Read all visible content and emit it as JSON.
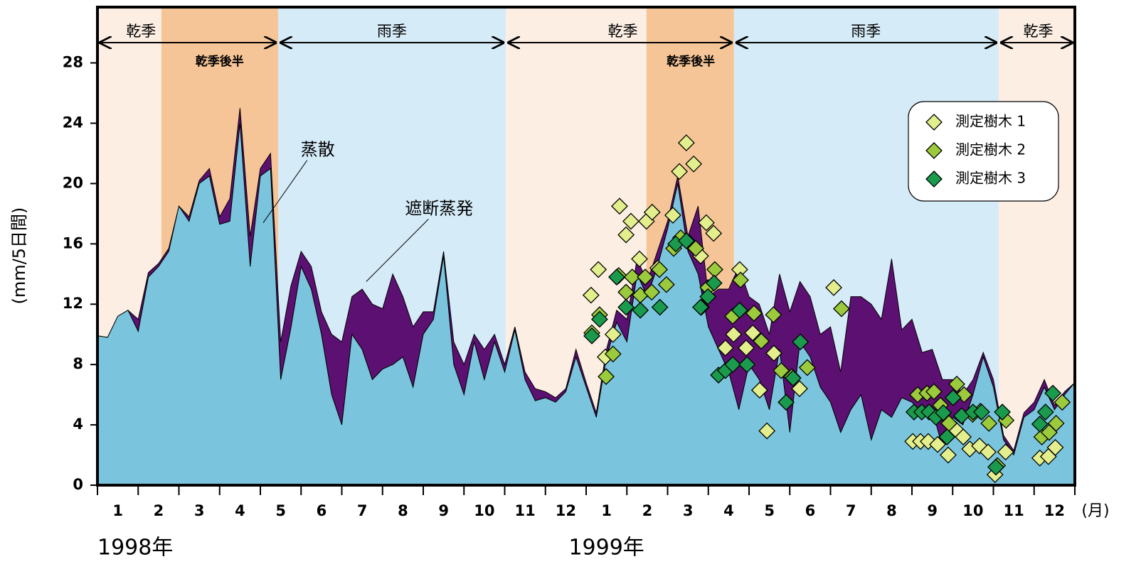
{
  "chart_data": {
    "type": "area",
    "y_label": "(mm/5日間)",
    "x_unit_label": "(月)",
    "year_labels": [
      {
        "label": "1998年",
        "at": 0
      },
      {
        "label": "1999年",
        "at": 12.5
      }
    ],
    "month_labels": [
      "1",
      "2",
      "3",
      "4",
      "5",
      "6",
      "7",
      "8",
      "9",
      "10",
      "11",
      "12",
      "1",
      "2",
      "3",
      "4",
      "5",
      "6",
      "7",
      "8",
      "9",
      "10",
      "11",
      "12"
    ],
    "xlim": [
      0,
      24
    ],
    "xticks": [
      0,
      1,
      2,
      3,
      4,
      5,
      6,
      7,
      8,
      9,
      10,
      11,
      12,
      13,
      14,
      15,
      16,
      17,
      18,
      19,
      20,
      21,
      22,
      23,
      24
    ],
    "ylim": [
      0,
      31.7
    ],
    "yticks": [
      0,
      4,
      8,
      12,
      16,
      20,
      24,
      28
    ],
    "bands": [
      {
        "from": 0,
        "to": 1.57,
        "color": "#fdeee3"
      },
      {
        "from": 1.57,
        "to": 4.44,
        "color": "#f6c597"
      },
      {
        "from": 4.44,
        "to": 10.03,
        "color": "#d5ebf8"
      },
      {
        "from": 10.03,
        "to": 13.48,
        "color": "#fdeee3"
      },
      {
        "from": 13.48,
        "to": 15.63,
        "color": "#f6c597"
      },
      {
        "from": 15.63,
        "to": 22.13,
        "color": "#d5ebf8"
      },
      {
        "from": 22.13,
        "to": 24,
        "color": "#fdeee3"
      }
    ],
    "periods": [
      {
        "label": "乾季",
        "from": 0,
        "to": 4.44,
        "label_at": 1.07
      },
      {
        "label": "雨季",
        "from": 4.44,
        "to": 10.03,
        "label_at": 7.23
      },
      {
        "label": "乾季",
        "from": 10.03,
        "to": 15.63,
        "label_at": 12.9
      },
      {
        "label": "雨季",
        "from": 15.63,
        "to": 22.13,
        "label_at": 18.87
      },
      {
        "label": "乾季",
        "from": 22.13,
        "to": 24,
        "label_at": 23.1
      }
    ],
    "sub_periods": [
      {
        "label": "乾季後半",
        "at": 3.0
      },
      {
        "label": "乾季後半",
        "at": 14.57
      }
    ],
    "x": [
      0,
      0.25,
      0.5,
      0.75,
      1,
      1.25,
      1.5,
      1.75,
      2,
      2.25,
      2.5,
      2.75,
      3,
      3.25,
      3.5,
      3.75,
      4,
      4.25,
      4.5,
      4.75,
      5,
      5.25,
      5.5,
      5.75,
      6,
      6.25,
      6.5,
      6.75,
      7,
      7.25,
      7.5,
      7.75,
      8,
      8.25,
      8.5,
      8.75,
      9,
      9.25,
      9.5,
      9.75,
      10,
      10.25,
      10.5,
      10.75,
      11,
      11.25,
      11.5,
      11.75,
      12,
      12.25,
      12.5,
      12.75,
      13,
      13.25,
      13.5,
      13.75,
      14,
      14.25,
      14.5,
      14.75,
      15,
      15.25,
      15.5,
      15.75,
      16,
      16.25,
      16.5,
      16.75,
      17,
      17.25,
      17.5,
      17.75,
      18,
      18.25,
      18.5,
      18.75,
      19,
      19.25,
      19.5,
      19.75,
      20,
      20.25,
      20.5,
      20.75,
      21,
      21.25,
      21.5,
      21.75,
      22,
      22.25,
      22.5,
      22.75,
      23,
      23.25,
      23.5,
      23.75,
      24
    ],
    "series": [
      {
        "name": "蒸散",
        "color": "#7ac5dd",
        "values": [
          9.9,
          9.8,
          11.2,
          11.6,
          10.2,
          13.8,
          14.5,
          15.5,
          18.5,
          17.5,
          20.0,
          20.5,
          17.3,
          17.5,
          24.0,
          14.5,
          20.5,
          21.0,
          7.0,
          10.4,
          14.5,
          13.0,
          10.0,
          6.0,
          4.0,
          10.0,
          9.0,
          7.0,
          7.7,
          8.0,
          8.5,
          6.5,
          10.0,
          11.0,
          15.2,
          8.0,
          6.0,
          9.5,
          7.0,
          9.5,
          7.5,
          10.3,
          7.0,
          5.6,
          5.8,
          5.5,
          6.2,
          8.5,
          6.5,
          4.5,
          8.5,
          10.8,
          9.5,
          14.0,
          12.5,
          14.5,
          17.0,
          20.0,
          15.5,
          14.0,
          10.5,
          9.0,
          7.5,
          5.0,
          8.0,
          7.0,
          5.0,
          9.0,
          3.5,
          9.5,
          8.5,
          6.5,
          5.5,
          3.5,
          5.0,
          6.0,
          3.0,
          5.0,
          4.5,
          5.8,
          5.5,
          4.8,
          5.0,
          2.5,
          4.5,
          4.0,
          6.0,
          8.5,
          6.5,
          3.0,
          2.0,
          4.5,
          5.0,
          6.5,
          5.0,
          6.0,
          6.8
        ]
      },
      {
        "name": "遮断蒸発",
        "color": "#5c1072",
        "values": [
          0,
          0,
          0,
          0,
          0.8,
          0.3,
          0.2,
          0.2,
          0,
          0.3,
          0.2,
          0.5,
          0.5,
          1.5,
          1.0,
          2.0,
          0.5,
          1.0,
          2.5,
          2.8,
          1.0,
          1.5,
          1.5,
          4.0,
          5.5,
          2.5,
          4.0,
          5.0,
          4.0,
          6.0,
          4.0,
          4.0,
          1.5,
          0.5,
          0.3,
          1.5,
          2.0,
          0.5,
          2.0,
          0.5,
          0.5,
          0.2,
          0.5,
          0.8,
          0.4,
          0.3,
          0.2,
          0.5,
          0.3,
          0.3,
          0.5,
          0.8,
          1.5,
          1.0,
          1.0,
          1.0,
          0.5,
          0.5,
          1.0,
          4.5,
          2.0,
          4.0,
          5.5,
          9.5,
          4.5,
          5.0,
          5.0,
          5.0,
          8.0,
          4.0,
          4.0,
          3.5,
          5.0,
          4.0,
          7.5,
          6.5,
          9.0,
          6.0,
          10.5,
          4.5,
          5.5,
          4.0,
          4.0,
          4.5,
          2.5,
          2.0,
          1.0,
          0.3,
          0.5,
          0.3,
          0.3,
          0.3,
          0.5,
          0.5,
          0.3,
          0.2,
          0
        ]
      }
    ],
    "annotations": [
      {
        "text": "蒸散",
        "x": 5.41,
        "y": 22.2,
        "to_x": 4.07,
        "to_y": 17.4
      },
      {
        "text": "遮断蒸発",
        "x": 8.39,
        "y": 18.3,
        "to_x": 6.6,
        "to_y": 13.5
      }
    ],
    "legend": "upper right",
    "points": [
      {
        "name": "測定樹木 1",
        "color": "#e3ee8c",
        "x": [
          12.12,
          12.3,
          12.47,
          12.66,
          12.82,
          12.98,
          13.1,
          13.31,
          13.48,
          13.62,
          13.76,
          14.13,
          14.29,
          14.46,
          14.64,
          14.81,
          14.95,
          15.13,
          15.42,
          15.62,
          15.77,
          15.93,
          16.09,
          16.26,
          16.44,
          16.61,
          17.24,
          18.08,
          20.02,
          20.21,
          20.4,
          20.63,
          20.89,
          21.07,
          21.26,
          21.42,
          21.66,
          21.87,
          22.04,
          22.3,
          23.14,
          23.35,
          23.52
        ],
        "values": [
          12.6,
          14.3,
          8.5,
          10.0,
          18.5,
          16.6,
          17.5,
          15.0,
          17.5,
          18.1,
          14.4,
          17.9,
          20.8,
          22.7,
          21.3,
          15.2,
          17.4,
          16.7,
          9.1,
          10.0,
          14.3,
          9.1,
          10.1,
          6.3,
          3.6,
          8.75,
          6.4,
          13.1,
          2.9,
          2.9,
          2.9,
          2.7,
          2.0,
          3.7,
          3.2,
          2.4,
          2.6,
          2.2,
          0.7,
          2.2,
          1.8,
          1.9,
          2.5
        ]
      },
      {
        "name": "測定樹木 2",
        "color": "#9bca3c",
        "x": [
          12.14,
          12.33,
          12.49,
          12.66,
          12.8,
          12.98,
          13.13,
          13.33,
          13.45,
          13.61,
          13.8,
          13.97,
          14.15,
          14.32,
          14.52,
          14.69,
          14.83,
          14.99,
          15.16,
          15.6,
          15.79,
          16.12,
          16.3,
          16.6,
          16.79,
          17.05,
          17.43,
          18.27,
          20.14,
          20.37,
          20.54,
          20.7,
          20.91,
          21.1,
          21.28,
          21.49,
          21.68,
          21.89,
          22.1,
          22.31,
          23.19,
          23.37,
          23.54,
          23.69
        ],
        "values": [
          10.1,
          11.3,
          7.2,
          8.7,
          13.9,
          12.8,
          13.8,
          12.6,
          13.8,
          12.8,
          14.3,
          13.3,
          15.7,
          16.4,
          16.1,
          15.7,
          11.8,
          13.1,
          14.3,
          11.2,
          13.6,
          11.4,
          9.55,
          11.3,
          7.6,
          7.2,
          7.8,
          11.7,
          6.0,
          6.1,
          6.2,
          5.3,
          4.1,
          6.7,
          6.0,
          4.7,
          4.9,
          4.1,
          1.3,
          4.3,
          3.2,
          3.5,
          4.1,
          5.5
        ]
      },
      {
        "name": "測定樹木 3",
        "color": "#1a9a4c",
        "x": [
          12.14,
          12.33,
          12.75,
          12.98,
          13.33,
          13.81,
          14.2,
          14.46,
          14.81,
          14.99,
          15.14,
          15.25,
          15.42,
          15.6,
          15.77,
          15.95,
          16.91,
          17.08,
          17.26,
          20.05,
          20.24,
          20.42,
          20.59,
          20.77,
          20.86,
          21.01,
          21.22,
          21.5,
          21.71,
          22.06,
          22.22,
          23.14,
          23.28,
          23.46
        ],
        "values": [
          9.9,
          11.0,
          13.8,
          11.8,
          11.6,
          11.8,
          16.0,
          16.2,
          11.8,
          12.5,
          13.4,
          7.3,
          7.6,
          8.0,
          11.6,
          8.0,
          5.5,
          7.1,
          9.5,
          4.85,
          4.85,
          4.85,
          4.5,
          4.8,
          3.2,
          5.8,
          4.6,
          4.85,
          4.85,
          1.2,
          4.85,
          4.05,
          4.85,
          6.1
        ]
      }
    ]
  }
}
